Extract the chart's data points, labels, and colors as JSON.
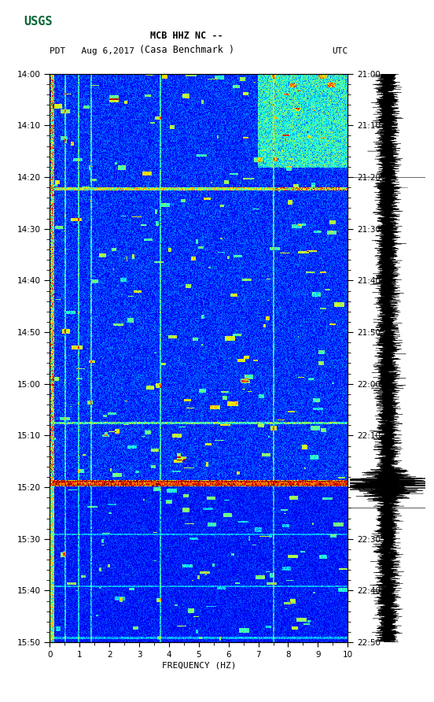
{
  "title_line1": "MCB HHZ NC --",
  "title_line2": "(Casa Benchmark )",
  "date_label": "PDT   Aug 6,2017",
  "utc_label": "UTC",
  "left_times": [
    "14:00",
    "14:10",
    "14:20",
    "14:30",
    "14:40",
    "14:50",
    "15:00",
    "15:10",
    "15:20",
    "15:30",
    "15:40",
    "15:50"
  ],
  "right_times": [
    "21:00",
    "21:10",
    "21:20",
    "21:30",
    "21:40",
    "21:50",
    "22:00",
    "22:10",
    "22:20",
    "22:30",
    "22:40",
    "22:50"
  ],
  "freq_ticks": [
    0,
    1,
    2,
    3,
    4,
    5,
    6,
    7,
    8,
    9,
    10
  ],
  "xlabel": "FREQUENCY (HZ)",
  "freq_min": 0,
  "freq_max": 10,
  "n_time": 660,
  "n_freq": 400,
  "background_color": "#ffffff",
  "colormap": "jet",
  "row_14_20": 132,
  "row_15_14": 474,
  "row_15_04": 404,
  "waveform_color": "#000000",
  "tick_color": "#000000",
  "label_color": "#000000",
  "usgs_green": "#006633"
}
